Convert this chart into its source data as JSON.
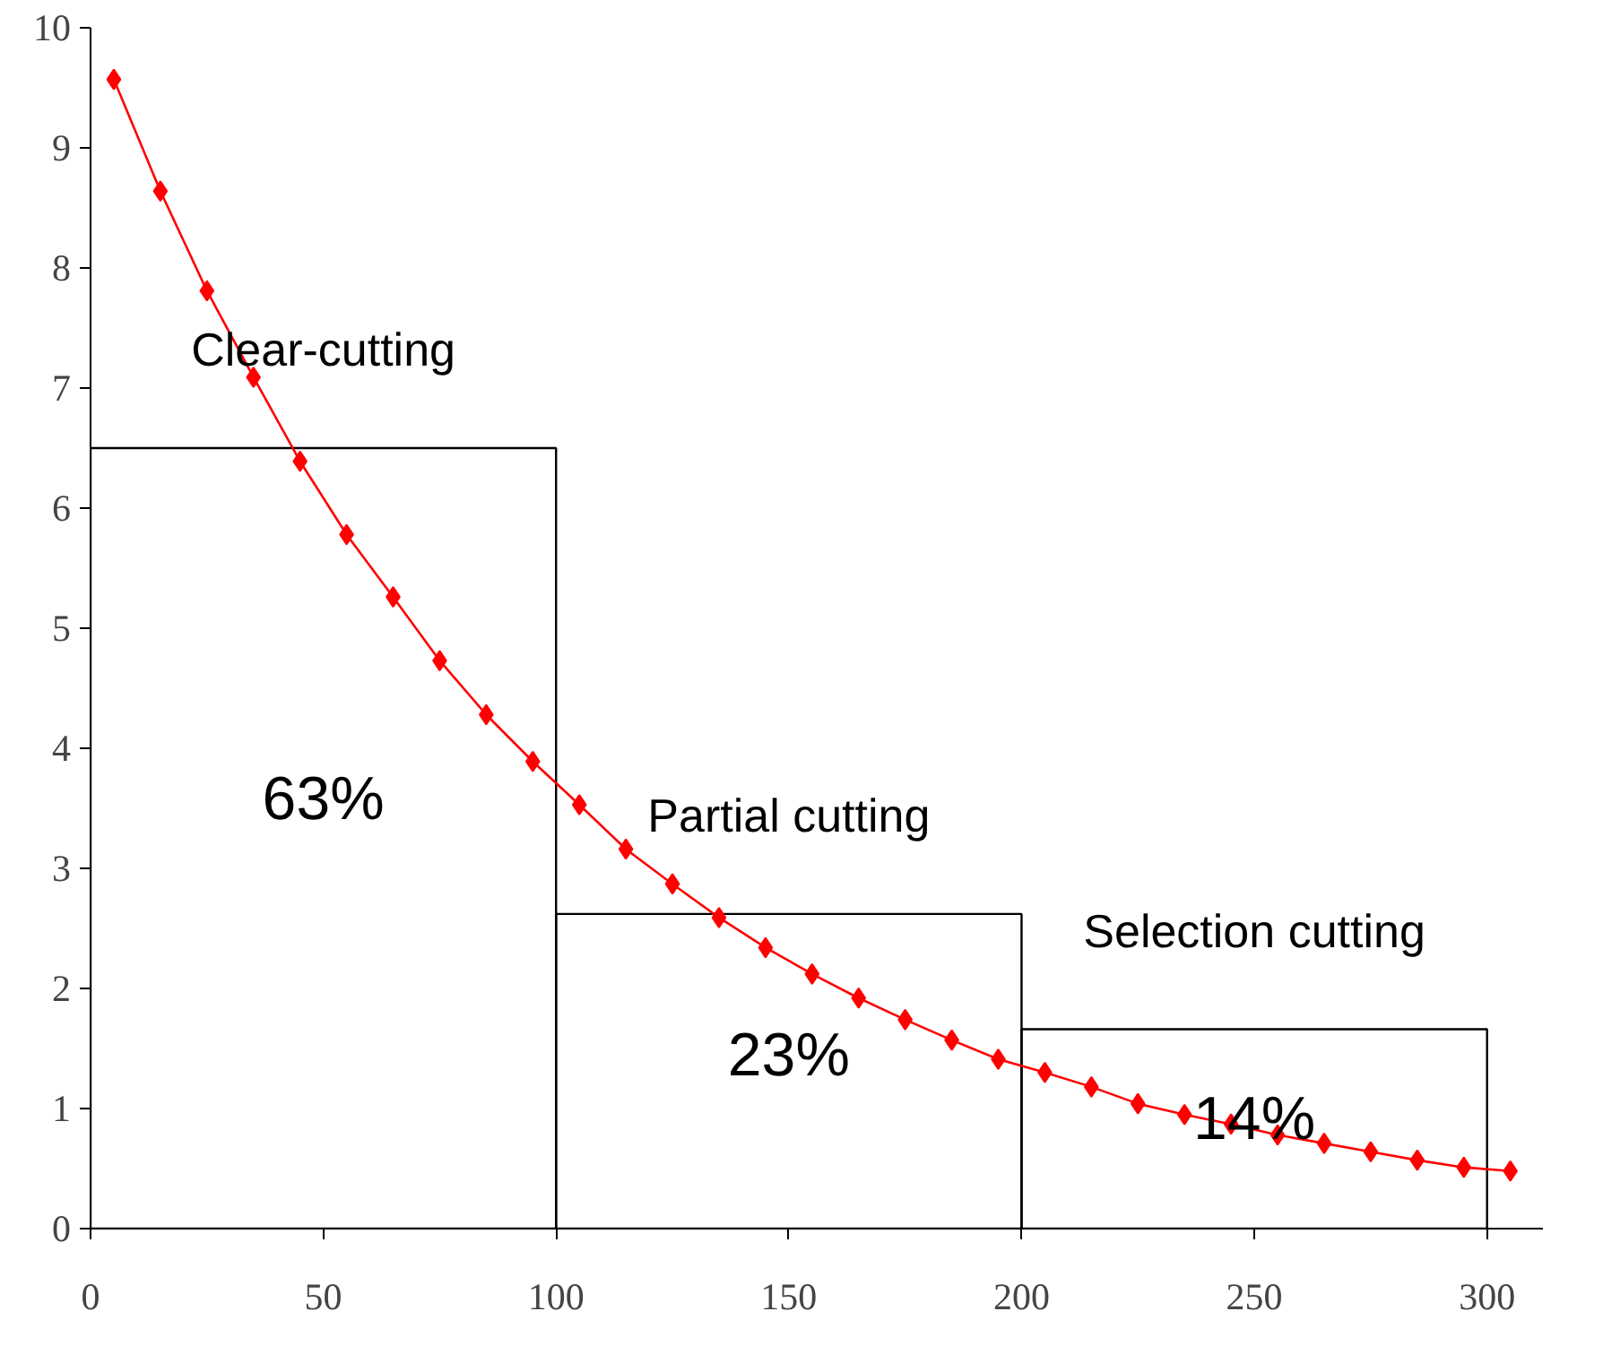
{
  "chart_data": {
    "type": "line",
    "xlim": [
      0,
      312
    ],
    "ylim": [
      0,
      10
    ],
    "xticks": [
      0,
      50,
      100,
      150,
      200,
      250,
      300
    ],
    "yticks": [
      0,
      1,
      2,
      3,
      4,
      5,
      6,
      7,
      8,
      9,
      10
    ],
    "grid": false,
    "marker": "diamond",
    "line_style": "solid",
    "series": [
      {
        "type": "bar",
        "color": "#000000",
        "x": [
          50,
          150,
          250
        ],
        "values": [
          6.5,
          2.62,
          1.66
        ]
      },
      {
        "color": "#ff0000",
        "x": [
          5,
          15,
          25,
          35,
          45,
          55,
          65,
          75,
          85,
          95,
          105,
          115,
          125,
          135,
          145,
          155,
          165,
          175,
          185,
          195,
          205,
          215,
          225,
          235,
          245,
          255,
          265,
          275,
          285,
          295,
          305
        ],
        "values": [
          9.57,
          8.64,
          7.81,
          7.09,
          6.39,
          5.78,
          5.26,
          4.73,
          4.28,
          3.89,
          3.53,
          3.16,
          2.87,
          2.59,
          2.34,
          2.12,
          1.92,
          1.74,
          1.57,
          1.41,
          1.3,
          1.18,
          1.04,
          0.95,
          0.87,
          0.78,
          0.71,
          0.64,
          0.57,
          0.51,
          0.48
        ]
      }
    ],
    "annotations": [
      "Clear-cutting",
      "Partial cutting",
      "Selection cutting",
      "63%",
      "23%",
      "14%"
    ]
  }
}
